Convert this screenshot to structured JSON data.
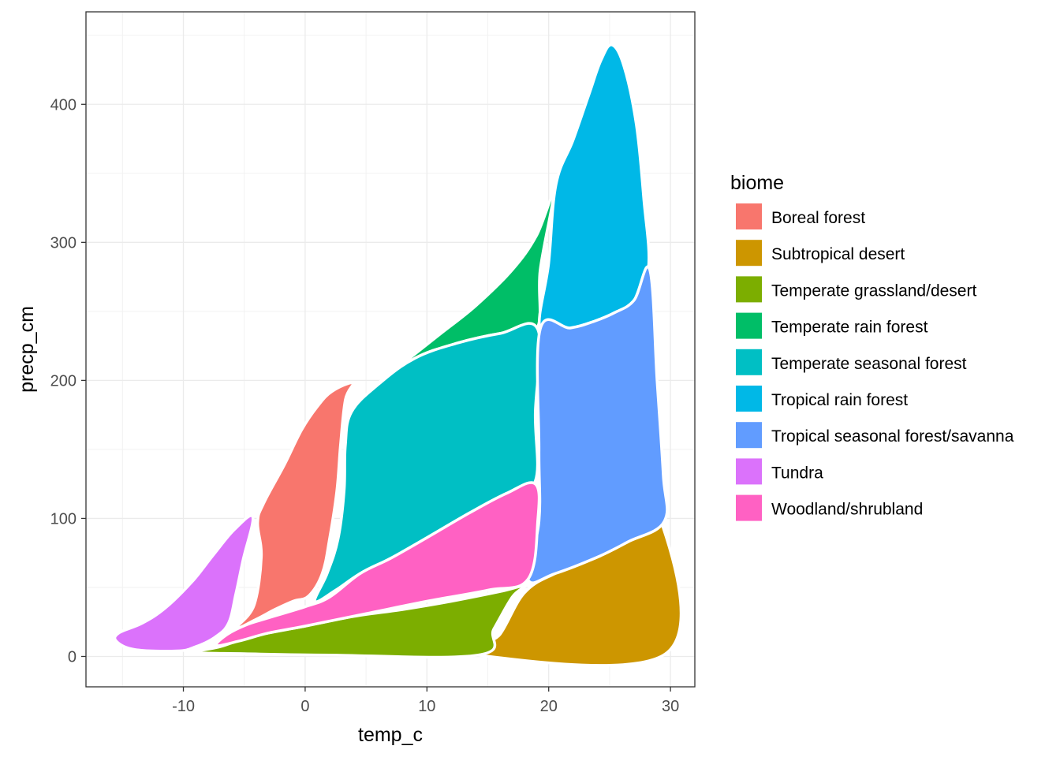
{
  "chart_data": {
    "type": "area",
    "title": "",
    "xlabel": "temp_c",
    "ylabel": "precp_cm",
    "xlim": [
      -18,
      32
    ],
    "ylim": [
      -22,
      467
    ],
    "x_ticks": [
      -10,
      0,
      10,
      20,
      30
    ],
    "x_tick_labels": [
      "-10",
      "0",
      "10",
      "20",
      "30"
    ],
    "y_ticks": [
      0,
      100,
      200,
      300,
      400
    ],
    "y_tick_labels": [
      "0",
      "100",
      "200",
      "300",
      "400"
    ],
    "grid": true,
    "legend_title": "biome",
    "legend_position": "right",
    "series": [
      {
        "name": "Boreal forest",
        "color": "#F8766D",
        "points": [
          [
            -5.6,
            21
          ],
          [
            -4.2,
            37
          ],
          [
            -3.6,
            72
          ],
          [
            -3.9,
            97
          ],
          [
            -3.4,
            111
          ],
          [
            -1.7,
            139
          ],
          [
            -0.3,
            164
          ],
          [
            1.0,
            181
          ],
          [
            2.2,
            192
          ],
          [
            3.9,
            198
          ],
          [
            3.3,
            186
          ],
          [
            2.9,
            153
          ],
          [
            2.6,
            120
          ],
          [
            2.0,
            85
          ],
          [
            1.4,
            60
          ],
          [
            0.3,
            44
          ],
          [
            -1,
            40
          ],
          [
            -2.5,
            34
          ],
          [
            -4,
            27
          ]
        ]
      },
      {
        "name": "Subtropical desert",
        "color": "#CD9600",
        "points": [
          [
            14.2,
            1
          ],
          [
            16,
            16
          ],
          [
            18,
            46
          ],
          [
            20.5,
            60
          ],
          [
            24,
            72
          ],
          [
            26.5,
            83
          ],
          [
            29.3,
            96
          ],
          [
            29.6,
            2
          ]
        ]
      },
      {
        "name": "Temperate grassland/desert",
        "color": "#7CAE00",
        "points": [
          [
            -9,
            3
          ],
          [
            -7,
            7
          ],
          [
            -5,
            13
          ],
          [
            -3,
            17
          ],
          [
            0,
            22
          ],
          [
            4,
            29
          ],
          [
            8,
            34
          ],
          [
            12,
            40
          ],
          [
            16,
            47
          ],
          [
            18,
            51
          ],
          [
            17,
            43
          ],
          [
            15.5,
            20
          ],
          [
            14.2,
            1
          ],
          [
            2,
            1
          ],
          [
            -5,
            2
          ]
        ]
      },
      {
        "name": "Temperate rain forest",
        "color": "#00BE67",
        "points": [
          [
            4.5,
            179
          ],
          [
            5.5,
            194
          ],
          [
            8,
            212
          ],
          [
            11,
            233
          ],
          [
            14,
            254
          ],
          [
            17,
            280
          ],
          [
            19,
            305
          ],
          [
            20.4,
            335
          ],
          [
            19.3,
            280
          ],
          [
            19,
            237
          ],
          [
            16,
            234
          ],
          [
            12.5,
            227
          ],
          [
            9,
            216
          ],
          [
            6,
            197
          ]
        ]
      },
      {
        "name": "Temperate seasonal forest",
        "color": "#00BFC4",
        "points": [
          [
            0.8,
            40
          ],
          [
            2.5,
            48
          ],
          [
            4.5,
            60
          ],
          [
            7,
            71
          ],
          [
            10,
            86
          ],
          [
            13.5,
            104
          ],
          [
            16.5,
            118
          ],
          [
            18.9,
            127
          ],
          [
            18.9,
            176
          ],
          [
            19.1,
            237
          ],
          [
            16,
            234
          ],
          [
            12.5,
            227
          ],
          [
            9,
            216
          ],
          [
            6,
            197
          ],
          [
            3.8,
            177
          ],
          [
            3.3,
            153
          ],
          [
            3.2,
            120
          ],
          [
            2.7,
            85
          ],
          [
            1.8,
            60
          ]
        ]
      },
      {
        "name": "Tropical rain forest",
        "color": "#00B8E7",
        "points": [
          [
            19.3,
            237
          ],
          [
            20,
            285
          ],
          [
            20.6,
            342
          ],
          [
            22,
            374
          ],
          [
            23.3,
            407
          ],
          [
            24.3,
            432
          ],
          [
            25.2,
            443
          ],
          [
            26.2,
            427
          ],
          [
            27.2,
            385
          ],
          [
            27.8,
            332
          ],
          [
            28.2,
            282
          ],
          [
            27,
            258
          ],
          [
            25.4,
            249
          ],
          [
            23.8,
            243
          ],
          [
            21.8,
            238
          ]
        ]
      },
      {
        "name": "Tropical seasonal forest/savanna",
        "color": "#619CFF",
        "points": [
          [
            18.3,
            56
          ],
          [
            19.2,
            98
          ],
          [
            19.2,
            150
          ],
          [
            19.3,
            237
          ],
          [
            21.8,
            238
          ],
          [
            23.8,
            243
          ],
          [
            25.4,
            249
          ],
          [
            27,
            258
          ],
          [
            28.3,
            280
          ],
          [
            28.9,
            200
          ],
          [
            29.4,
            132
          ],
          [
            29.5,
            98
          ],
          [
            26.5,
            83
          ],
          [
            24,
            72
          ],
          [
            20.5,
            60
          ]
        ]
      },
      {
        "name": "Tundra",
        "color": "#DB72FB",
        "points": [
          [
            -15.5,
            11
          ],
          [
            -15.3,
            17
          ],
          [
            -13.4,
            24
          ],
          [
            -11.5,
            35
          ],
          [
            -9.3,
            54
          ],
          [
            -7.5,
            74
          ],
          [
            -5.8,
            92
          ],
          [
            -4.3,
            101
          ],
          [
            -5.1,
            70
          ],
          [
            -5.7,
            45
          ],
          [
            -6.3,
            24
          ],
          [
            -7.4,
            14
          ],
          [
            -9,
            7
          ],
          [
            -10.5,
            4
          ],
          [
            -14,
            5
          ]
        ]
      },
      {
        "name": "Woodland/shrubland",
        "color": "#FF61C3",
        "points": [
          [
            -7.3,
            8
          ],
          [
            -6.4,
            16
          ],
          [
            -4.8,
            23
          ],
          [
            -3,
            28
          ],
          [
            0,
            36
          ],
          [
            2,
            43
          ],
          [
            4.5,
            60
          ],
          [
            7,
            71
          ],
          [
            10,
            86
          ],
          [
            13.5,
            104
          ],
          [
            16.5,
            118
          ],
          [
            18.9,
            125
          ],
          [
            19.1,
            98
          ],
          [
            18.3,
            56
          ],
          [
            15,
            48
          ],
          [
            10,
            40
          ],
          [
            5,
            31
          ],
          [
            0,
            22
          ],
          [
            -3,
            17
          ],
          [
            -5.5,
            11
          ]
        ]
      }
    ]
  }
}
